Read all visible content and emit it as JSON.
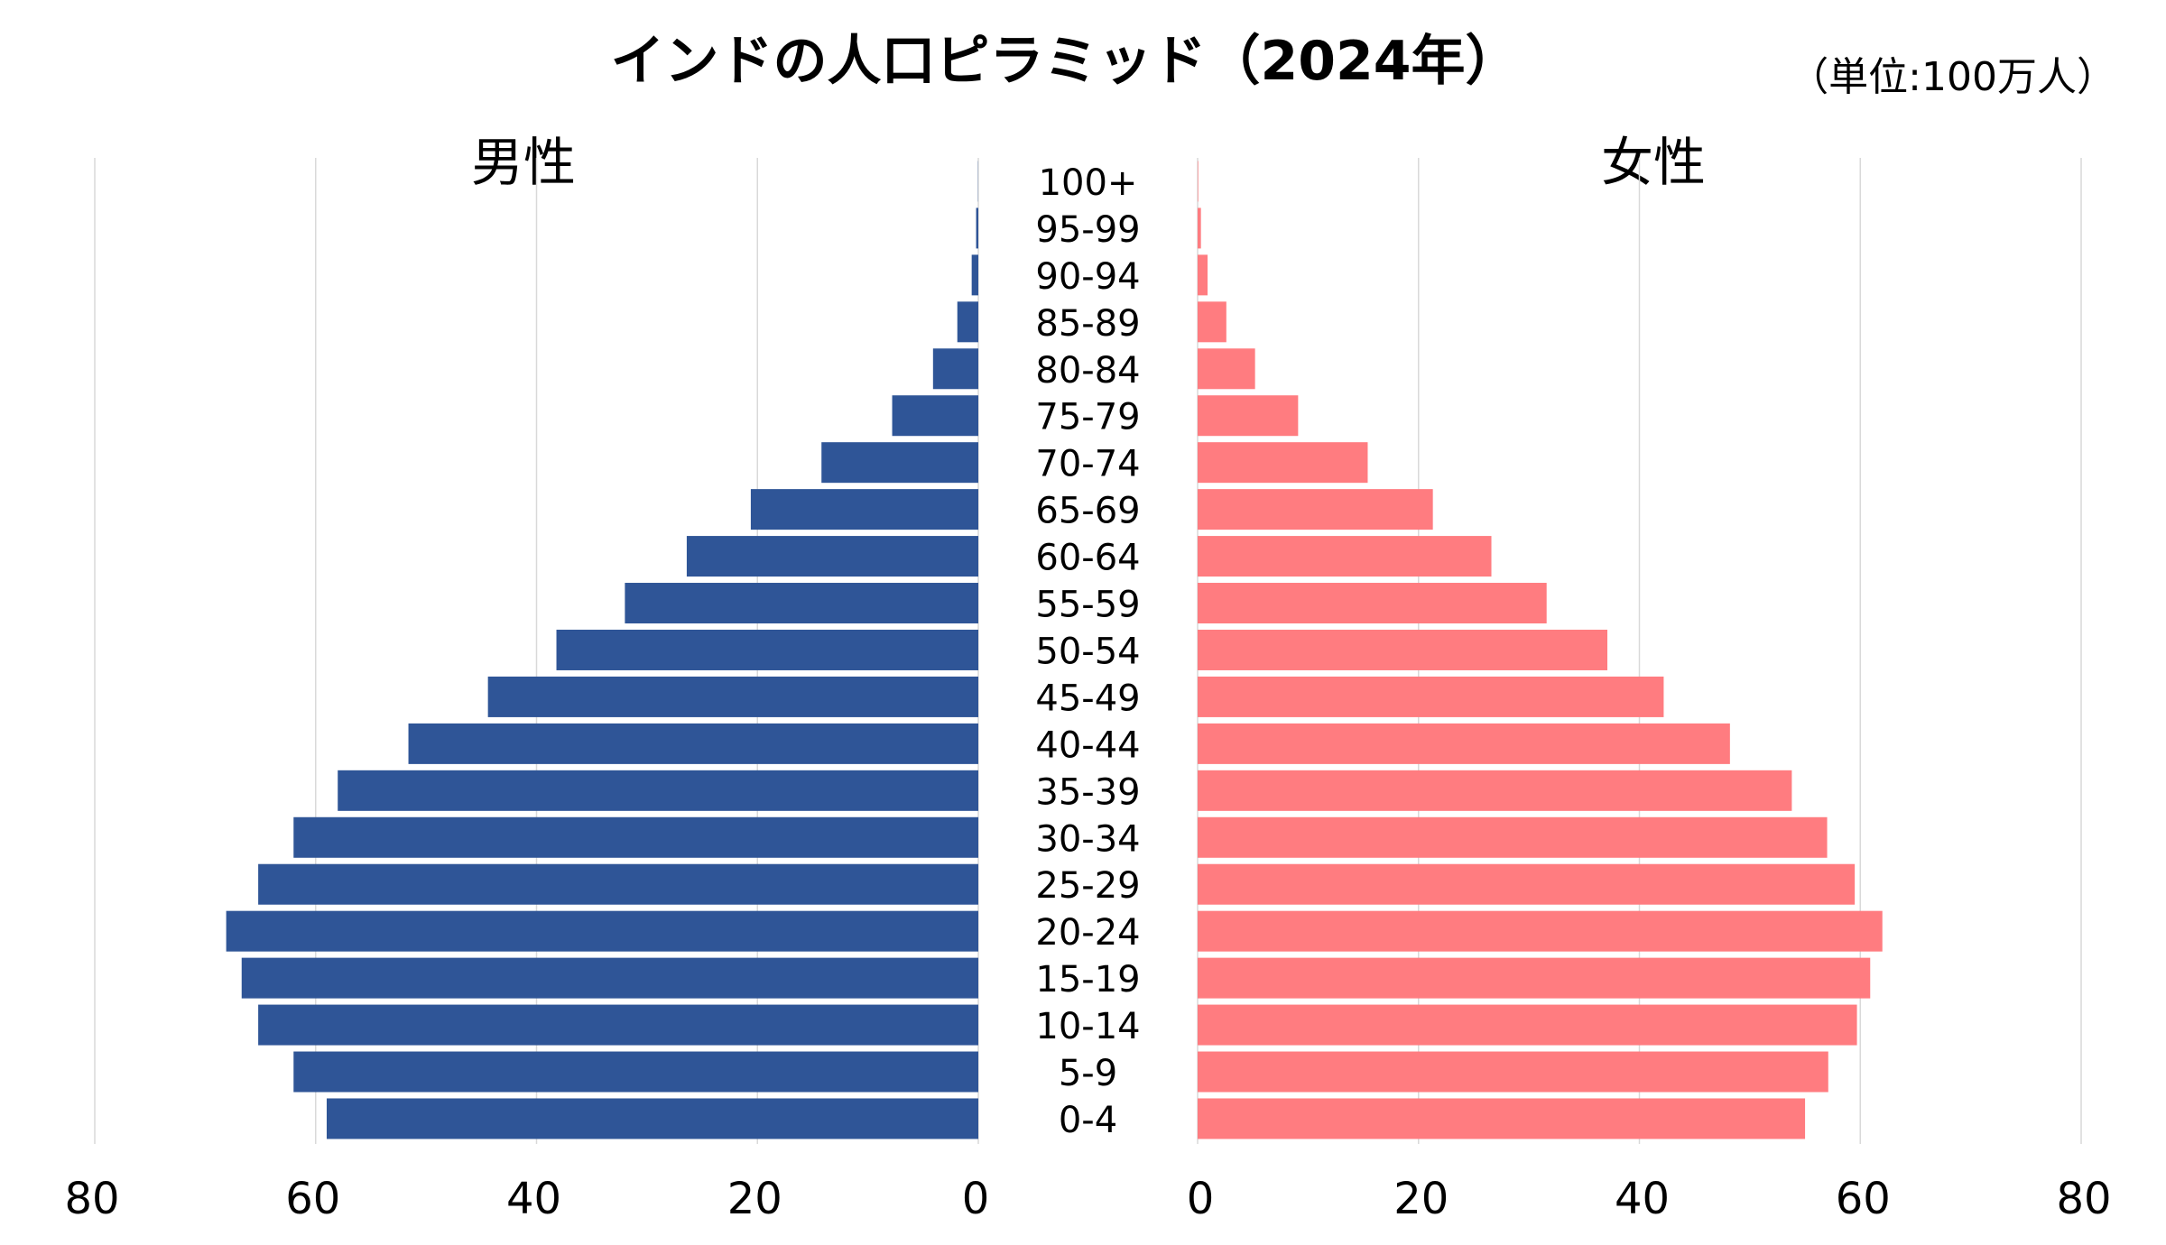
{
  "chart_data": {
    "type": "bar",
    "title": "インドの人口ピラミッド（2024年）",
    "unit_note": "（単位:100万人）",
    "left_label": "男性",
    "right_label": "女性",
    "xlim": [
      0,
      80
    ],
    "x_ticks": [
      "0",
      "20",
      "40",
      "60",
      "80"
    ],
    "categories": [
      "100+",
      "95-99",
      "90-94",
      "85-89",
      "80-84",
      "75-79",
      "70-74",
      "65-69",
      "60-64",
      "55-59",
      "50-54",
      "45-49",
      "40-44",
      "35-39",
      "30-34",
      "25-29",
      "20-24",
      "15-19",
      "10-14",
      "5-9",
      "0-4"
    ],
    "series": [
      {
        "name": "男性",
        "color": "#2f5597",
        "values": [
          0.02,
          0.2,
          0.6,
          1.9,
          4.1,
          7.8,
          14.2,
          20.6,
          26.4,
          32.0,
          38.2,
          44.4,
          51.6,
          58.0,
          62.0,
          65.2,
          68.1,
          66.7,
          65.2,
          62.0,
          59.0
        ]
      },
      {
        "name": "女性",
        "color": "#ff7c80",
        "values": [
          0.05,
          0.3,
          0.9,
          2.6,
          5.2,
          9.1,
          15.4,
          21.3,
          26.6,
          31.6,
          37.1,
          42.2,
          48.2,
          53.8,
          57.0,
          59.5,
          62.0,
          60.9,
          59.7,
          57.1,
          55.0
        ]
      }
    ]
  }
}
